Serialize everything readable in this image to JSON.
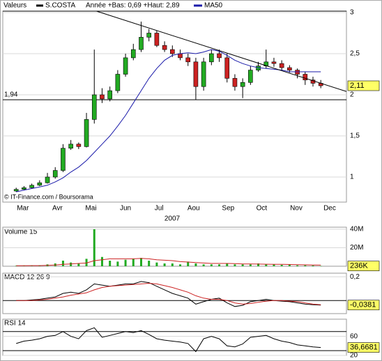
{
  "chart_data": [
    {
      "type": "candlestick",
      "title": "Valeurs",
      "range_note": "Année +Bas: 0,69 +Haut: 2,89",
      "source": "© IT-Finance.com / Boursorama",
      "xlabel": "2007",
      "x": [
        68,
        75,
        82,
        89,
        96,
        103,
        110,
        117,
        124,
        131,
        138,
        145,
        152,
        159,
        166,
        173,
        180,
        187,
        194,
        201,
        208,
        215,
        222,
        229,
        236,
        243,
        250,
        257,
        264,
        271,
        278,
        285,
        292,
        299,
        306,
        313,
        320,
        327,
        334,
        341
      ],
      "xlim": [
        56,
        364
      ],
      "xticks": [
        {
          "value": 74,
          "label": "Mar"
        },
        {
          "value": 105,
          "label": "Avr"
        },
        {
          "value": 135,
          "label": "Mai"
        },
        {
          "value": 166,
          "label": "Jun"
        },
        {
          "value": 196,
          "label": "Jul"
        },
        {
          "value": 227,
          "label": "Aou"
        },
        {
          "value": 258,
          "label": "Sep"
        },
        {
          "value": 288,
          "label": "Oct"
        },
        {
          "value": 319,
          "label": "Nov"
        },
        {
          "value": 349,
          "label": "Dec"
        }
      ],
      "ylim": [
        0.695,
        3.017
      ],
      "yticks": [
        1,
        {
          "value": 1.5,
          "label": "1,5"
        },
        2,
        {
          "value": 2.5,
          "label": "2,5"
        },
        3
      ],
      "series": [
        {
          "name": "S.COSTA",
          "color": "#000000",
          "up_color": "#22aa22",
          "down_color": "#cc2222",
          "open": [
            0.83,
            0.85,
            0.87,
            0.9,
            0.93,
            1.0,
            1.08,
            1.35,
            1.4,
            1.37,
            1.7,
            2.0,
            1.95,
            2.05,
            2.25,
            2.45,
            2.55,
            2.7,
            2.75,
            2.6,
            2.55,
            2.5,
            2.45,
            2.4,
            2.1,
            2.4,
            2.5,
            2.45,
            2.2,
            2.1,
            2.15,
            2.3,
            2.35,
            2.4,
            2.38,
            2.33,
            2.3,
            2.25,
            2.18,
            2.14
          ],
          "high": [
            0.87,
            0.89,
            0.92,
            0.96,
            1.05,
            1.12,
            1.4,
            1.45,
            1.42,
            1.78,
            2.55,
            2.08,
            2.1,
            2.3,
            2.5,
            2.62,
            2.89,
            2.8,
            2.78,
            2.65,
            2.6,
            2.55,
            2.5,
            2.45,
            2.45,
            2.55,
            2.55,
            2.5,
            2.25,
            2.2,
            2.35,
            2.4,
            2.55,
            2.45,
            2.42,
            2.36,
            2.32,
            2.28,
            2.22,
            2.18
          ],
          "low": [
            0.82,
            0.84,
            0.86,
            0.89,
            0.92,
            0.98,
            1.06,
            1.33,
            1.34,
            1.36,
            1.65,
            1.9,
            1.92,
            2.02,
            2.22,
            2.42,
            2.52,
            2.65,
            2.58,
            2.52,
            2.46,
            2.42,
            2.35,
            1.94,
            2.05,
            2.36,
            2.4,
            2.15,
            2.05,
            1.96,
            2.12,
            2.28,
            2.32,
            2.34,
            2.3,
            2.27,
            2.2,
            2.12,
            2.1,
            2.08
          ],
          "close": [
            0.85,
            0.87,
            0.9,
            0.93,
            1.0,
            1.08,
            1.35,
            1.4,
            1.37,
            1.7,
            2.0,
            1.95,
            2.05,
            2.25,
            2.45,
            2.55,
            2.7,
            2.75,
            2.6,
            2.55,
            2.5,
            2.45,
            2.4,
            2.1,
            2.4,
            2.5,
            2.45,
            2.2,
            2.1,
            2.15,
            2.3,
            2.35,
            2.4,
            2.38,
            2.33,
            2.3,
            2.25,
            2.18,
            2.14,
            2.11
          ]
        },
        {
          "name": "MA50",
          "color": "#1a1aaa",
          "values": [
            0.82,
            0.84,
            0.86,
            0.88,
            0.9,
            0.94,
            0.99,
            1.06,
            1.12,
            1.2,
            1.3,
            1.4,
            1.5,
            1.62,
            1.75,
            1.9,
            2.05,
            2.2,
            2.32,
            2.42,
            2.48,
            2.5,
            2.51,
            2.5,
            2.52,
            2.55,
            2.53,
            2.48,
            2.42,
            2.38,
            2.35,
            2.33,
            2.32,
            2.31,
            2.3,
            2.28,
            2.28,
            2.28,
            2.28,
            2.28
          ]
        }
      ],
      "hline": {
        "value": 1.94,
        "label": "1,94"
      },
      "trendline": {
        "x": [
          140,
          364
        ],
        "values": [
          3.017,
          2.04
        ]
      },
      "last_label": {
        "value": 2.11,
        "label": "2,11"
      }
    },
    {
      "type": "bar",
      "title": "Volume 15",
      "color": "#22aa22",
      "ma_color": "#cc2222",
      "x": [
        68,
        75,
        82,
        89,
        96,
        103,
        110,
        117,
        124,
        131,
        138,
        145,
        152,
        159,
        166,
        173,
        180,
        187,
        194,
        201,
        208,
        215,
        222,
        229,
        236,
        243,
        250,
        257,
        264,
        271,
        278,
        285,
        292,
        299,
        306,
        313,
        320,
        327,
        334,
        341
      ],
      "xlim": [
        56,
        364
      ],
      "values": [
        500000,
        800000,
        600000,
        900000,
        2000000,
        3000000,
        6000000,
        4000000,
        3000000,
        8000000,
        40000000,
        10000000,
        6000000,
        5000000,
        7000000,
        8000000,
        9000000,
        6000000,
        4000000,
        3000000,
        3000000,
        2000000,
        5000000,
        3000000,
        2000000,
        2000000,
        2000000,
        3000000,
        2000000,
        2000000,
        2000000,
        3000000,
        2000000,
        2000000,
        1500000,
        1500000,
        1000000,
        1000000,
        800000,
        236000
      ],
      "ma_values": [
        600000,
        600000,
        700000,
        700000,
        900000,
        1300000,
        2000000,
        2500000,
        3000000,
        3500000,
        6000000,
        7000000,
        8000000,
        8000000,
        8000000,
        8000000,
        8500000,
        8000000,
        7000000,
        6500000,
        6000000,
        5000000,
        4500000,
        4000000,
        3500000,
        3000000,
        3000000,
        3000000,
        2800000,
        2500000,
        2400000,
        2300000,
        2200000,
        2100000,
        2000000,
        1900000,
        1700000,
        1500000,
        1300000,
        1200000
      ],
      "ylim": [
        0,
        42200000
      ],
      "yticks": [
        {
          "value": 20000000,
          "label": "20M"
        },
        {
          "value": 40000000,
          "label": "40M"
        }
      ],
      "last_label": {
        "value": 236000,
        "label": "236K"
      }
    },
    {
      "type": "line",
      "title": "MACD 12 26 9",
      "x": [
        68,
        75,
        82,
        89,
        96,
        103,
        110,
        117,
        124,
        131,
        138,
        145,
        152,
        159,
        166,
        173,
        180,
        187,
        194,
        201,
        208,
        215,
        222,
        229,
        236,
        243,
        250,
        257,
        264,
        271,
        278,
        285,
        292,
        299,
        306,
        313,
        320,
        327,
        334,
        341
      ],
      "xlim": [
        56,
        364
      ],
      "series": [
        {
          "color": "#000000",
          "values": [
            0,
            0,
            0.005,
            0.01,
            0.02,
            0.03,
            0.06,
            0.07,
            0.06,
            0.09,
            0.14,
            0.13,
            0.12,
            0.13,
            0.14,
            0.14,
            0.16,
            0.15,
            0.12,
            0.09,
            0.06,
            0.04,
            0.02,
            -0.03,
            -0.01,
            0.01,
            0.02,
            -0.02,
            -0.05,
            -0.04,
            -0.01,
            0.0,
            0.01,
            0.0,
            -0.005,
            -0.01,
            -0.02,
            -0.03,
            -0.035,
            -0.0381
          ]
        },
        {
          "color": "#cc2222",
          "values": [
            0,
            0,
            0,
            0.005,
            0.01,
            0.02,
            0.03,
            0.045,
            0.055,
            0.065,
            0.09,
            0.11,
            0.12,
            0.125,
            0.13,
            0.135,
            0.14,
            0.145,
            0.14,
            0.125,
            0.11,
            0.09,
            0.07,
            0.04,
            0.02,
            0.01,
            0.01,
            0.0,
            -0.02,
            -0.03,
            -0.025,
            -0.015,
            -0.005,
            0.0,
            0.0,
            -0.005,
            -0.01,
            -0.02,
            -0.03,
            -0.035
          ]
        }
      ],
      "ylim": [
        -0.11,
        0.23
      ],
      "yticks": [
        {
          "value": 0.2,
          "label": "0,2"
        }
      ],
      "hlines": [
        0
      ],
      "last_label": {
        "value": -0.0381,
        "label": "-0,0381"
      }
    },
    {
      "type": "line",
      "title": "RSI 14",
      "x": [
        68,
        75,
        82,
        89,
        96,
        103,
        110,
        117,
        124,
        131,
        138,
        145,
        152,
        159,
        166,
        173,
        180,
        187,
        194,
        201,
        208,
        215,
        222,
        229,
        236,
        243,
        250,
        257,
        264,
        271,
        278,
        285,
        292,
        299,
        306,
        313,
        320,
        327,
        334,
        341
      ],
      "xlim": [
        56,
        364
      ],
      "series": [
        {
          "color": "#000000",
          "values": [
            45,
            50,
            52,
            55,
            60,
            62,
            70,
            60,
            55,
            72,
            78,
            58,
            62,
            66,
            70,
            68,
            72,
            64,
            55,
            52,
            50,
            48,
            45,
            28,
            55,
            60,
            55,
            40,
            38,
            44,
            58,
            60,
            62,
            55,
            50,
            47,
            42,
            40,
            38,
            36.6681
          ]
        }
      ],
      "ylim": [
        20,
        96
      ],
      "yticks": [
        20,
        60
      ],
      "hlines": [
        70,
        30
      ],
      "last_label": {
        "value": 36.6681,
        "label": "36,6681"
      }
    }
  ]
}
